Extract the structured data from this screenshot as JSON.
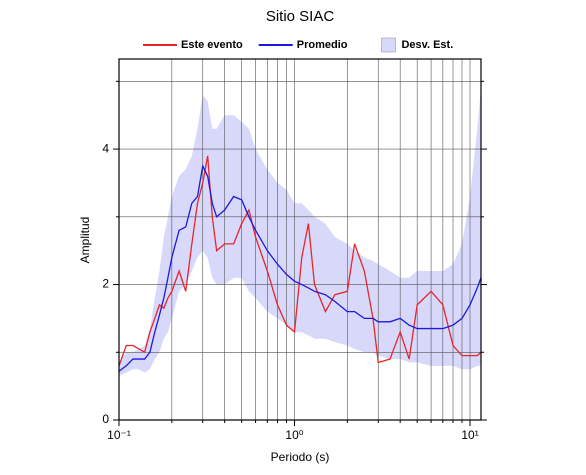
{
  "chart_data": {
    "type": "line",
    "title": "Sitio SIAC",
    "x_label": "Periodo (s)",
    "y_label": "Amplitud",
    "log_x": true,
    "xlim": [
      0.1,
      11.55
    ],
    "ylim": [
      0,
      5.33
    ],
    "xticks": [
      {
        "value": 0.1,
        "label": "10⁻¹"
      },
      {
        "value": 1,
        "label": "10⁰"
      },
      {
        "value": 10,
        "label": "10¹"
      }
    ],
    "yticks": [
      0,
      2,
      4
    ],
    "xgrid": [
      0.2,
      0.3,
      0.4,
      0.5,
      0.6,
      0.7,
      0.8,
      0.9,
      2,
      3,
      4,
      5,
      6,
      7,
      8,
      9
    ],
    "ygrid": [
      1,
      3,
      5
    ],
    "x": [
      0.1,
      0.11,
      0.12,
      0.13,
      0.14,
      0.15,
      0.16,
      0.17,
      0.18,
      0.19,
      0.2,
      0.22,
      0.24,
      0.26,
      0.28,
      0.3,
      0.32,
      0.34,
      0.36,
      0.4,
      0.45,
      0.5,
      0.55,
      0.6,
      0.7,
      0.8,
      0.9,
      1.0,
      1.1,
      1.2,
      1.3,
      1.5,
      1.7,
      2.0,
      2.2,
      2.5,
      2.8,
      3.0,
      3.5,
      4.0,
      4.5,
      5.0,
      6.0,
      7.0,
      8.0,
      9.0,
      10,
      11,
      11.55
    ],
    "series": [
      {
        "name": "Este evento",
        "color": "#e8252a",
        "values": [
          0.8,
          1.1,
          1.1,
          1.05,
          1.0,
          1.3,
          1.5,
          1.7,
          1.65,
          1.8,
          1.9,
          2.2,
          1.9,
          2.6,
          3.2,
          3.5,
          3.9,
          3.0,
          2.5,
          2.6,
          2.6,
          2.9,
          3.1,
          2.7,
          2.2,
          1.7,
          1.4,
          1.3,
          2.4,
          2.9,
          2.0,
          1.6,
          1.85,
          1.9,
          2.6,
          2.2,
          1.5,
          0.85,
          0.9,
          1.3,
          0.9,
          1.7,
          1.9,
          1.7,
          1.1,
          0.95,
          0.95,
          0.95,
          1.0
        ]
      },
      {
        "name": "Promedio",
        "color": "#1a1adf",
        "values": [
          0.72,
          0.8,
          0.9,
          0.9,
          0.9,
          1.0,
          1.3,
          1.55,
          1.8,
          2.1,
          2.4,
          2.8,
          2.85,
          3.2,
          3.3,
          3.75,
          3.6,
          3.2,
          3.0,
          3.1,
          3.3,
          3.25,
          3.0,
          2.8,
          2.5,
          2.3,
          2.15,
          2.05,
          2.0,
          1.95,
          1.9,
          1.85,
          1.75,
          1.6,
          1.6,
          1.5,
          1.5,
          1.45,
          1.45,
          1.5,
          1.4,
          1.35,
          1.35,
          1.35,
          1.4,
          1.5,
          1.7,
          1.95,
          2.1
        ]
      },
      {
        "name": "Desv. Est.",
        "color": "#d8d8fb",
        "upper": [
          0.85,
          1.0,
          1.0,
          1.05,
          1.1,
          1.35,
          1.8,
          2.2,
          2.7,
          3.0,
          3.3,
          3.6,
          3.7,
          3.9,
          4.3,
          4.8,
          4.7,
          4.3,
          4.3,
          4.5,
          4.5,
          4.4,
          4.3,
          4.0,
          3.7,
          3.5,
          3.4,
          3.2,
          3.2,
          3.1,
          3.0,
          2.9,
          2.7,
          2.6,
          2.5,
          2.4,
          2.35,
          2.3,
          2.2,
          2.1,
          2.1,
          2.2,
          2.2,
          2.2,
          2.3,
          2.6,
          3.3,
          4.3,
          4.9
        ],
        "lower": [
          0.65,
          0.7,
          0.75,
          0.75,
          0.7,
          0.75,
          0.9,
          1.0,
          1.2,
          1.3,
          1.5,
          1.9,
          2.0,
          2.2,
          2.4,
          2.5,
          2.4,
          2.1,
          2.0,
          2.0,
          2.1,
          2.1,
          1.9,
          1.8,
          1.6,
          1.5,
          1.4,
          1.3,
          1.3,
          1.25,
          1.2,
          1.2,
          1.15,
          1.1,
          1.05,
          1.0,
          1.0,
          0.95,
          0.9,
          0.9,
          0.85,
          0.85,
          0.8,
          0.8,
          0.8,
          0.75,
          0.75,
          0.8,
          0.8
        ]
      }
    ]
  }
}
